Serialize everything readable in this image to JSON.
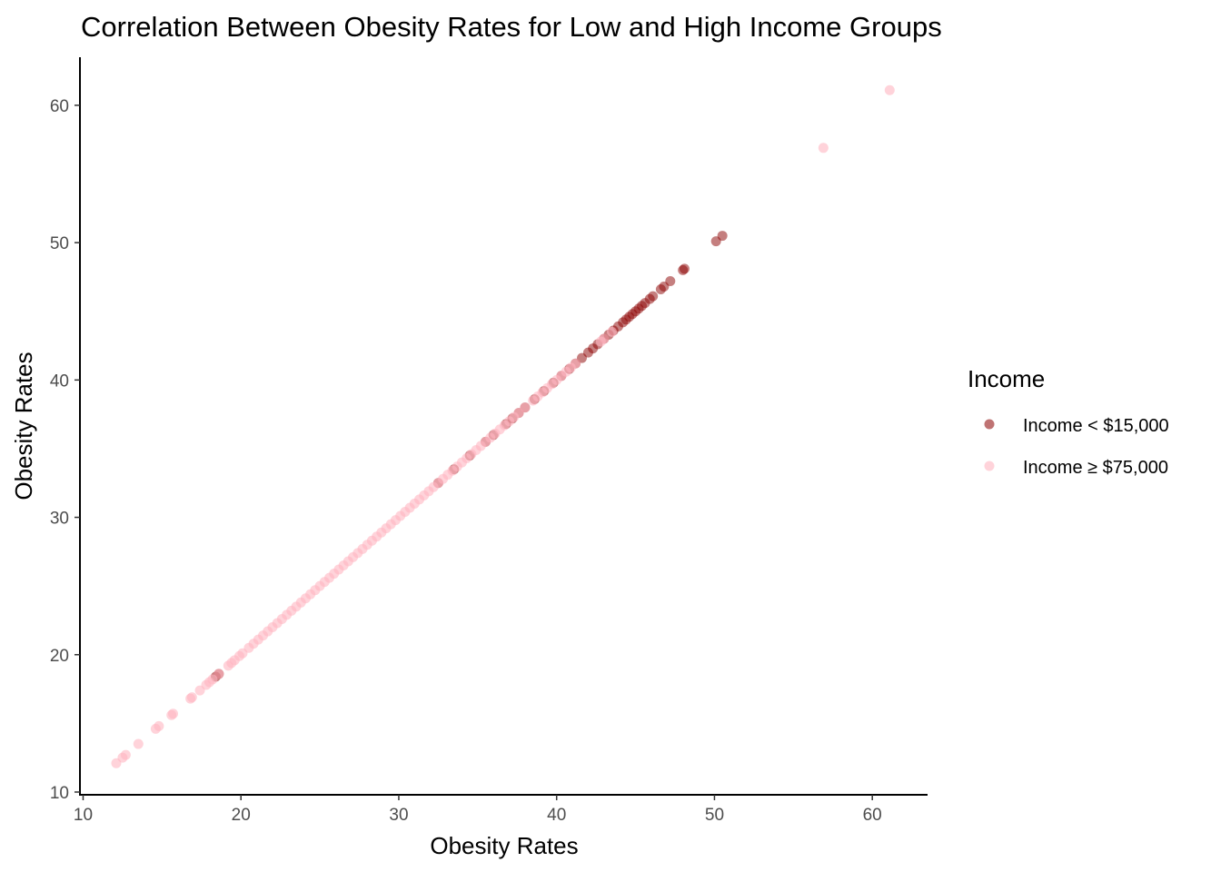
{
  "chart_data": {
    "type": "scatter",
    "title": "Correlation Between Obesity Rates for Low and High Income Groups",
    "xlabel": "Obesity Rates",
    "ylabel": "Obesity Rates",
    "xlim": [
      9.8,
      63.5
    ],
    "ylim": [
      9.8,
      63.5
    ],
    "x_ticks": [
      "10",
      "20",
      "30",
      "40",
      "50",
      "60"
    ],
    "y_ticks": [
      "10",
      "20",
      "30",
      "40",
      "50",
      "60"
    ],
    "grid": false,
    "legend_position": "right",
    "legend_title": "Income",
    "series": [
      {
        "name": "Income < $15,000",
        "color": "#8b0000",
        "opacity": 0.5,
        "points": [
          [
            18.4,
            18.4
          ],
          [
            18.6,
            18.6
          ],
          [
            32.5,
            32.5
          ],
          [
            33.5,
            33.5
          ],
          [
            34.5,
            34.5
          ],
          [
            35.5,
            35.5
          ],
          [
            36.0,
            36.0
          ],
          [
            36.8,
            36.8
          ],
          [
            37.2,
            37.2
          ],
          [
            37.6,
            37.6
          ],
          [
            38.0,
            38.0
          ],
          [
            38.6,
            38.6
          ],
          [
            39.2,
            39.2
          ],
          [
            39.8,
            39.8
          ],
          [
            40.3,
            40.3
          ],
          [
            40.8,
            40.8
          ],
          [
            41.2,
            41.2
          ],
          [
            41.6,
            41.6
          ],
          [
            42.0,
            42.0
          ],
          [
            42.3,
            42.3
          ],
          [
            42.6,
            42.6
          ],
          [
            43.0,
            43.0
          ],
          [
            43.3,
            43.3
          ],
          [
            43.6,
            43.6
          ],
          [
            43.9,
            43.9
          ],
          [
            44.2,
            44.2
          ],
          [
            44.4,
            44.4
          ],
          [
            44.6,
            44.6
          ],
          [
            44.8,
            44.8
          ],
          [
            45.0,
            45.0
          ],
          [
            45.2,
            45.2
          ],
          [
            45.4,
            45.4
          ],
          [
            45.6,
            45.6
          ],
          [
            45.9,
            45.9
          ],
          [
            46.1,
            46.1
          ],
          [
            46.6,
            46.6
          ],
          [
            46.8,
            46.8
          ],
          [
            47.2,
            47.2
          ],
          [
            48.0,
            48.0
          ],
          [
            48.1,
            48.1
          ],
          [
            50.1,
            50.1
          ],
          [
            50.5,
            50.5
          ]
        ]
      },
      {
        "name": "Income ≥ $75,000",
        "color": "#ffb6c1",
        "opacity": 0.6,
        "points": [
          [
            12.1,
            12.1
          ],
          [
            12.5,
            12.5
          ],
          [
            12.7,
            12.7
          ],
          [
            13.5,
            13.5
          ],
          [
            14.6,
            14.6
          ],
          [
            14.8,
            14.8
          ],
          [
            15.6,
            15.6
          ],
          [
            15.7,
            15.7
          ],
          [
            16.8,
            16.8
          ],
          [
            16.9,
            16.9
          ],
          [
            17.4,
            17.4
          ],
          [
            17.8,
            17.8
          ],
          [
            18.0,
            18.0
          ],
          [
            18.2,
            18.2
          ],
          [
            18.6,
            18.6
          ],
          [
            19.2,
            19.2
          ],
          [
            19.4,
            19.4
          ],
          [
            19.6,
            19.6
          ],
          [
            19.9,
            19.9
          ],
          [
            20.1,
            20.1
          ],
          [
            20.5,
            20.5
          ],
          [
            20.8,
            20.8
          ],
          [
            21.1,
            21.1
          ],
          [
            21.4,
            21.4
          ],
          [
            21.7,
            21.7
          ],
          [
            22.0,
            22.0
          ],
          [
            22.3,
            22.3
          ],
          [
            22.6,
            22.6
          ],
          [
            22.9,
            22.9
          ],
          [
            23.2,
            23.2
          ],
          [
            23.5,
            23.5
          ],
          [
            23.8,
            23.8
          ],
          [
            24.1,
            24.1
          ],
          [
            24.4,
            24.4
          ],
          [
            24.7,
            24.7
          ],
          [
            25.0,
            25.0
          ],
          [
            25.3,
            25.3
          ],
          [
            25.6,
            25.6
          ],
          [
            25.9,
            25.9
          ],
          [
            26.2,
            26.2
          ],
          [
            26.5,
            26.5
          ],
          [
            26.8,
            26.8
          ],
          [
            27.1,
            27.1
          ],
          [
            27.4,
            27.4
          ],
          [
            27.7,
            27.7
          ],
          [
            28.0,
            28.0
          ],
          [
            28.3,
            28.3
          ],
          [
            28.6,
            28.6
          ],
          [
            28.9,
            28.9
          ],
          [
            29.2,
            29.2
          ],
          [
            29.5,
            29.5
          ],
          [
            29.8,
            29.8
          ],
          [
            30.1,
            30.1
          ],
          [
            30.4,
            30.4
          ],
          [
            30.7,
            30.7
          ],
          [
            31.0,
            31.0
          ],
          [
            31.3,
            31.3
          ],
          [
            31.6,
            31.6
          ],
          [
            31.9,
            31.9
          ],
          [
            32.2,
            32.2
          ],
          [
            32.5,
            32.5
          ],
          [
            32.8,
            32.8
          ],
          [
            33.1,
            33.1
          ],
          [
            33.4,
            33.4
          ],
          [
            33.7,
            33.7
          ],
          [
            34.0,
            34.0
          ],
          [
            34.3,
            34.3
          ],
          [
            34.6,
            34.6
          ],
          [
            34.9,
            34.9
          ],
          [
            35.2,
            35.2
          ],
          [
            35.5,
            35.5
          ],
          [
            35.8,
            35.8
          ],
          [
            36.1,
            36.1
          ],
          [
            36.4,
            36.4
          ],
          [
            36.7,
            36.7
          ],
          [
            37.0,
            37.0
          ],
          [
            37.3,
            37.3
          ],
          [
            37.6,
            37.6
          ],
          [
            38.0,
            38.0
          ],
          [
            38.5,
            38.5
          ],
          [
            38.8,
            38.8
          ],
          [
            39.1,
            39.1
          ],
          [
            39.4,
            39.4
          ],
          [
            39.7,
            39.7
          ],
          [
            40.0,
            40.0
          ],
          [
            40.3,
            40.3
          ],
          [
            40.6,
            40.6
          ],
          [
            40.9,
            40.9
          ],
          [
            41.2,
            41.2
          ],
          [
            42.8,
            42.8
          ],
          [
            43.0,
            43.0
          ],
          [
            43.5,
            43.5
          ],
          [
            56.9,
            56.9
          ],
          [
            61.1,
            61.1
          ]
        ]
      }
    ]
  }
}
